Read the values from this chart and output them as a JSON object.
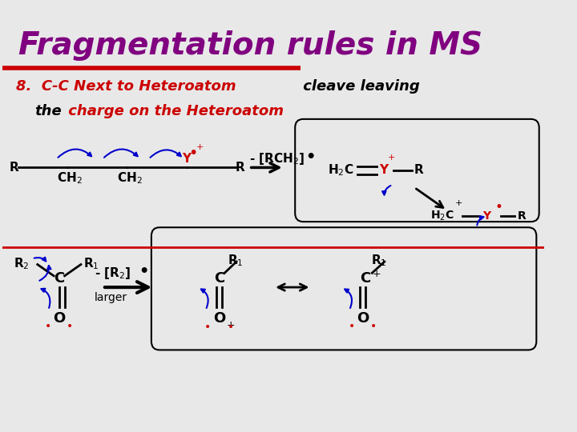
{
  "title": "Fragmentation rules in MS",
  "title_color": "#800080",
  "title_fontsize": 28,
  "subtitle_line1": "8.  C-C Next to Heteroatom  cleave leaving",
  "subtitle_line2": "    the  charge on the Heteroatom",
  "bg_color": "#e8e8e8",
  "rule8_color": "#cc0000",
  "black_color": "#000000",
  "blue_color": "#0000cc",
  "red_color": "#cc0000"
}
